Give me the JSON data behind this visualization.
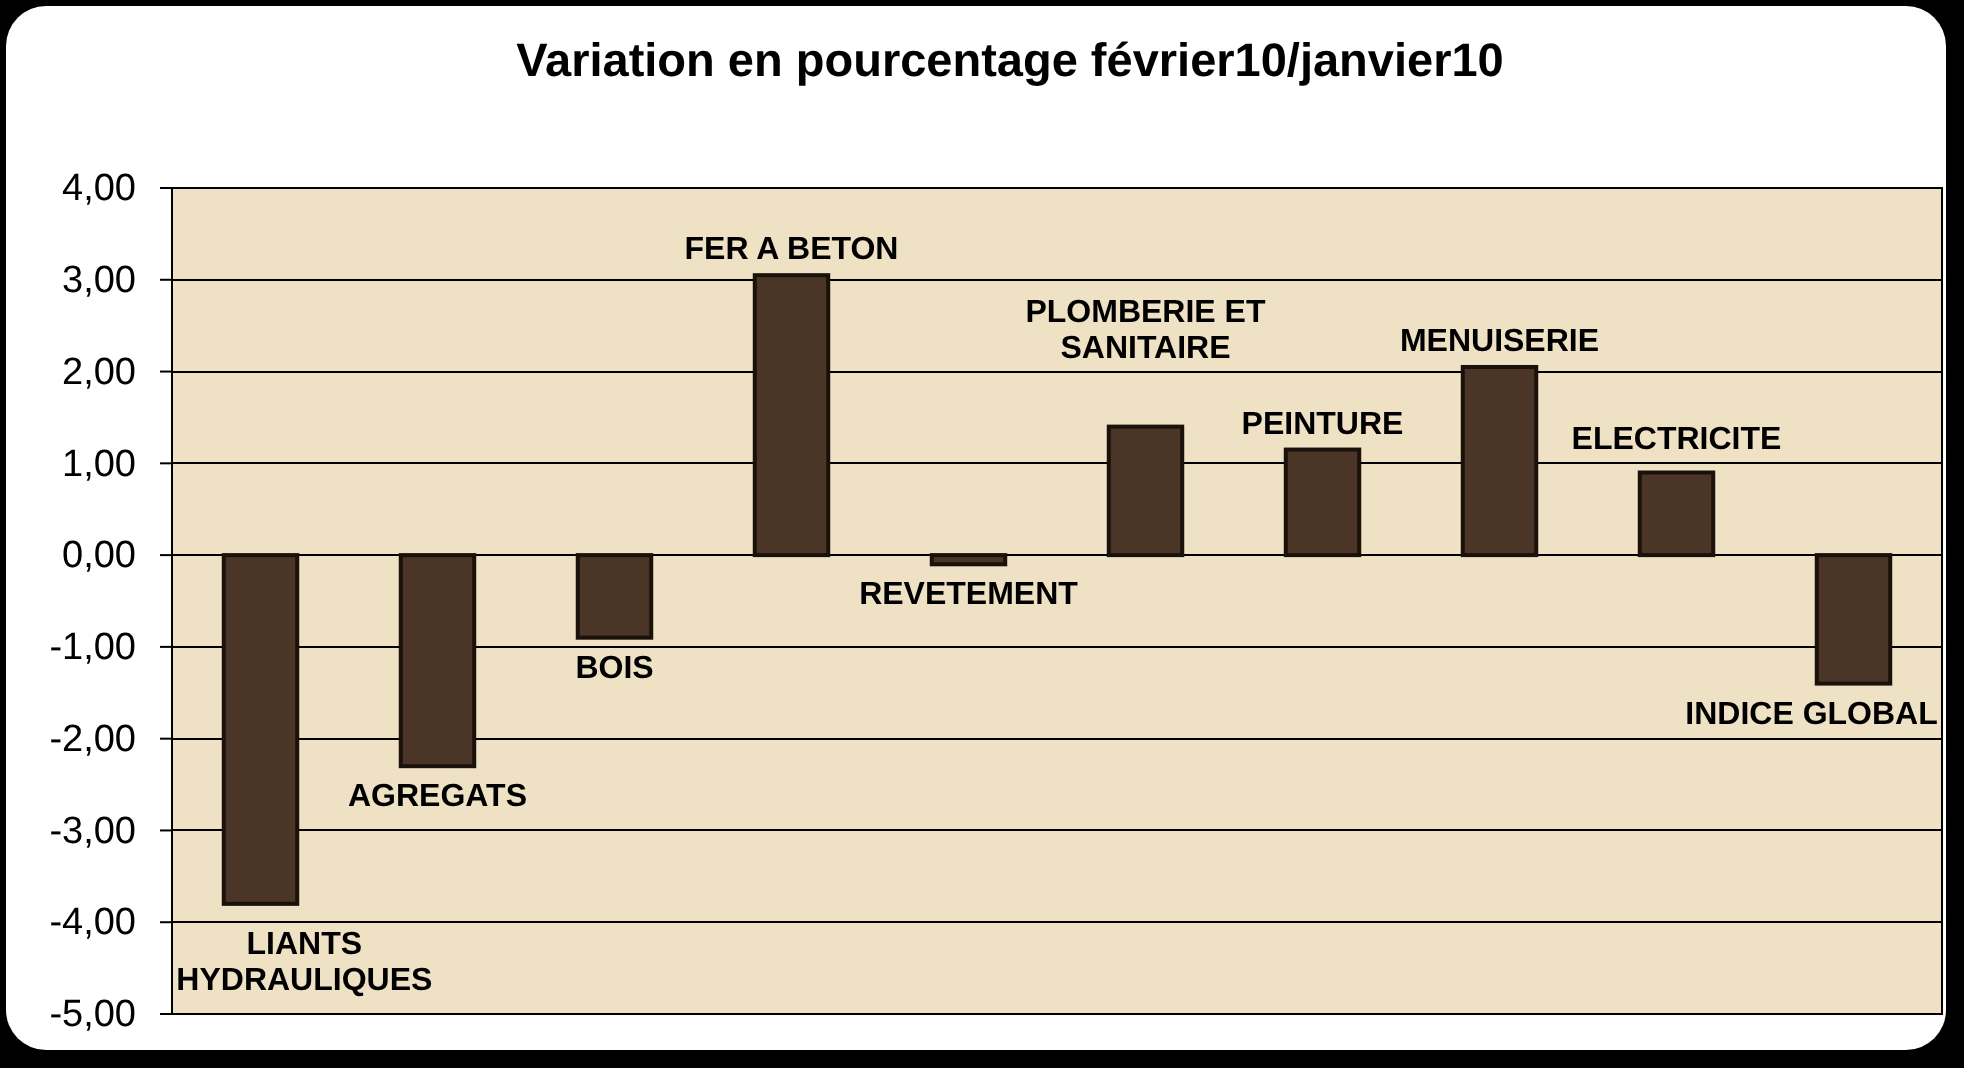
{
  "chart_data": {
    "type": "bar",
    "title": "Variation en pourcentage février10/janvier10",
    "categories": [
      "LIANTS HYDRAULIQUES",
      "AGREGATS",
      "BOIS",
      "FER A BETON",
      "REVETEMENT",
      "PLOMBERIE ET SANITAIRE",
      "PEINTURE",
      "MENUISERIE",
      "ELECTRICITE",
      "INDICE GLOBAL"
    ],
    "values": [
      -3.8,
      -2.3,
      -0.9,
      3.05,
      -0.1,
      1.4,
      1.15,
      2.05,
      0.9,
      -1.4
    ],
    "color": "#4a3526",
    "ylim": [
      -5,
      4
    ],
    "yticks": [
      {
        "value": -5,
        "label": "-5,00"
      },
      {
        "value": -4,
        "label": "-4,00"
      },
      {
        "value": -3,
        "label": "-3,00"
      },
      {
        "value": -2,
        "label": "-2,00"
      },
      {
        "value": -1,
        "label": "-1,00"
      },
      {
        "value": 0,
        "label": "0,00"
      },
      {
        "value": 1,
        "label": "1,00"
      },
      {
        "value": 2,
        "label": "2,00"
      },
      {
        "value": 3,
        "label": "3,00"
      },
      {
        "value": 4,
        "label": "4,00"
      }
    ],
    "grid": "y"
  }
}
